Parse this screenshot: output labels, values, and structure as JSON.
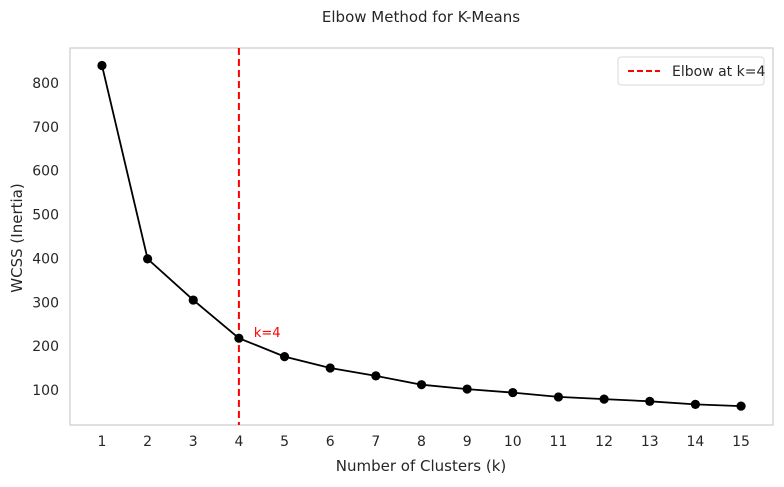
{
  "chart_data": {
    "type": "line",
    "title": "Elbow Method for K-Means",
    "xlabel": "Number of Clusters (k)",
    "ylabel": "WCSS (Inertia)",
    "x": [
      1,
      2,
      3,
      4,
      5,
      6,
      7,
      8,
      9,
      10,
      11,
      12,
      13,
      14,
      15
    ],
    "xticks": [
      1,
      2,
      3,
      4,
      5,
      6,
      7,
      8,
      9,
      10,
      11,
      12,
      13,
      14,
      15
    ],
    "yticks": [
      100,
      200,
      300,
      400,
      500,
      600,
      700,
      800
    ],
    "xlim": [
      0.3,
      15.7
    ],
    "ylim": [
      20,
      880
    ],
    "series": [
      {
        "values": [
          840,
          399,
          305,
          218,
          176,
          150,
          132,
          112,
          102,
          94,
          84,
          79,
          74,
          67,
          63
        ],
        "color": "#000000",
        "marker": "circle"
      }
    ],
    "elbow": {
      "k": 4,
      "color": "#ff0000",
      "style": "dashed",
      "legend_label": "Elbow at k=4",
      "annotation": "k=4"
    },
    "grid": false,
    "legend_position": "top-right"
  }
}
